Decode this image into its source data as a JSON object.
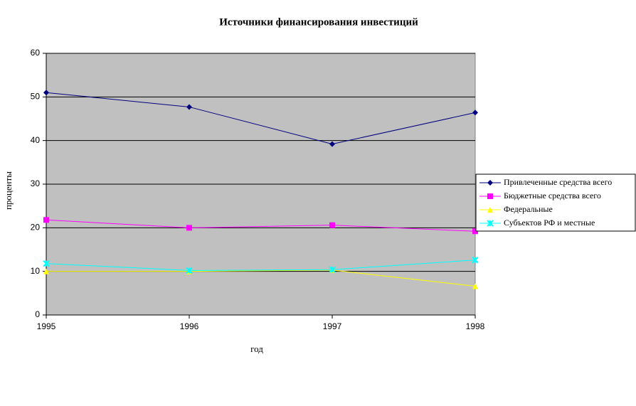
{
  "chart_data": {
    "type": "line",
    "title": "Источники финансирования инвестиций",
    "x_label": "год",
    "y_label": "проценты",
    "categories": [
      "1995",
      "1996",
      "1997",
      "1998"
    ],
    "series": [
      {
        "name": "Привлеченные средства всего",
        "color": "#000080",
        "marker": "diamond",
        "values": [
          51,
          47.7,
          39.2,
          46.4
        ]
      },
      {
        "name": "Бюджетные средства всего",
        "color": "#ff00ff",
        "marker": "square",
        "values": [
          21.8,
          20,
          20.6,
          19.2
        ]
      },
      {
        "name": "Федеральные",
        "color": "#ffff00",
        "marker": "triangle",
        "values": [
          10,
          10,
          10.3,
          6.6
        ]
      },
      {
        "name": "Субъектов РФ и местные",
        "color": "#00ffff",
        "marker": "cross",
        "values": [
          11.8,
          10.2,
          10.4,
          12.6
        ]
      }
    ],
    "ylim": [
      0,
      60
    ],
    "yticks": [
      0,
      10,
      20,
      30,
      40,
      50,
      60
    ],
    "grid": true,
    "legend": "right",
    "plot_background": "#c0c0c0"
  }
}
